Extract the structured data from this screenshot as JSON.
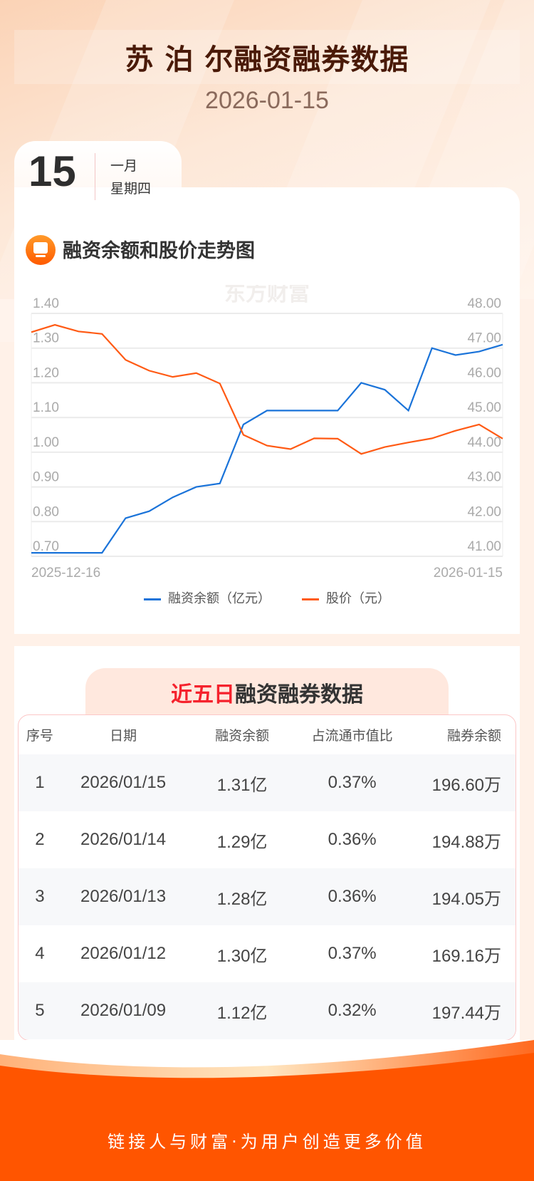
{
  "header": {
    "title": "苏 泊 尔融资融券数据",
    "date": "2026-01-15"
  },
  "date_card": {
    "day": "15",
    "month": "一月",
    "weekday": "星期四"
  },
  "chart_section": {
    "title": "融资余额和股价走势图",
    "watermark": "东方财富"
  },
  "chart_data": {
    "type": "line",
    "title": "融资余额和股价走势图",
    "x_start_label": "2025-12-16",
    "x_end_label": "2026-01-15",
    "y_left": {
      "ticks": [
        "1.40",
        "1.30",
        "1.20",
        "1.10",
        "1.00",
        "0.90",
        "0.80",
        "0.70"
      ],
      "range": [
        0.7,
        1.4
      ]
    },
    "y_right": {
      "ticks": [
        "48.00",
        "47.00",
        "46.00",
        "45.00",
        "44.00",
        "43.00",
        "42.00",
        "41.00"
      ],
      "range": [
        41,
        48
      ]
    },
    "grid": true,
    "legend_position": "bottom",
    "series": [
      {
        "name": "融资余额（亿元）",
        "axis": "left",
        "color": "#1a73d9",
        "values": [
          0.71,
          0.71,
          0.71,
          0.71,
          0.81,
          0.83,
          0.87,
          0.9,
          0.91,
          1.08,
          1.12,
          1.12,
          1.12,
          1.12,
          1.2,
          1.18,
          1.12,
          1.3,
          1.28,
          1.29,
          1.31
        ]
      },
      {
        "name": "股价（元）",
        "axis": "right",
        "color": "#ff5a14",
        "values": [
          47.46,
          47.67,
          47.48,
          47.41,
          46.66,
          46.35,
          46.17,
          46.28,
          45.98,
          44.5,
          44.19,
          44.09,
          44.4,
          44.39,
          43.95,
          44.15,
          44.28,
          44.4,
          44.62,
          44.8,
          44.39
        ]
      }
    ]
  },
  "table_section": {
    "title_highlight": "近五日",
    "title_rest": "融资融券数据",
    "columns": [
      "序号",
      "日期",
      "融资余额",
      "占流通市值比",
      "融券余额"
    ],
    "rows": [
      [
        "1",
        "2026/01/15",
        "1.31亿",
        "0.37%",
        "196.60万"
      ],
      [
        "2",
        "2026/01/14",
        "1.29亿",
        "0.36%",
        "194.88万"
      ],
      [
        "3",
        "2026/01/13",
        "1.28亿",
        "0.36%",
        "194.05万"
      ],
      [
        "4",
        "2026/01/12",
        "1.30亿",
        "0.37%",
        "169.16万"
      ],
      [
        "5",
        "2026/01/09",
        "1.12亿",
        "0.32%",
        "197.44万"
      ]
    ]
  },
  "footer": {
    "slogan": "链接人与财富·为用户创造更多价值"
  }
}
